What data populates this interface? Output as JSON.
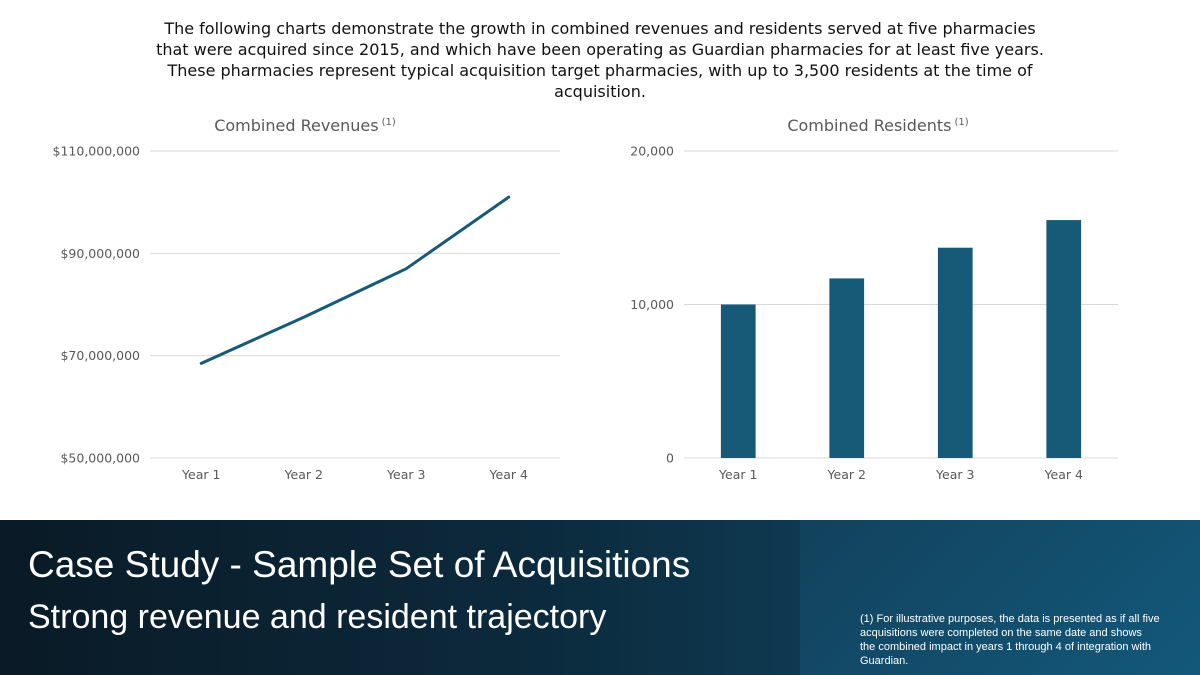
{
  "intro_text": "The following charts demonstrate the growth in combined revenues and residents served at five pharmacies that were acquired since 2015, and which have been operating as Guardian pharmacies for at least five years. These pharmacies represent typical acquisition target pharmacies, with up to 3,500 residents at the time of acquisition.",
  "chart_data": [
    {
      "type": "line",
      "title": "Combined Revenues",
      "title_superscript": "(1)",
      "categories": [
        "Year 1",
        "Year 2",
        "Year 3",
        "Year 4"
      ],
      "values": [
        68500000,
        77500000,
        87000000,
        101000000
      ],
      "ylim": [
        50000000,
        110000000
      ],
      "y_ticks": [
        50000000,
        70000000,
        90000000,
        110000000
      ],
      "y_tick_labels": [
        "$50,000,000",
        "$70,000,000",
        "$90,000,000",
        "$110,000,000"
      ],
      "grid": true,
      "color": "#165a78"
    },
    {
      "type": "bar",
      "title": "Combined Residents",
      "title_superscript": "(1)",
      "categories": [
        "Year 1",
        "Year 2",
        "Year 3",
        "Year 4"
      ],
      "values": [
        10000,
        11700,
        13700,
        15500
      ],
      "ylim": [
        0,
        20000
      ],
      "y_ticks": [
        0,
        10000,
        20000
      ],
      "y_tick_labels": [
        "0",
        "10,000",
        "20,000"
      ],
      "grid": true,
      "color": "#165a78"
    }
  ],
  "footer": {
    "title": "Case Study - Sample Set of Acquisitions",
    "subtitle": "Strong revenue and resident trajectory",
    "footnote": "(1) For illustrative purposes, the data is presented as if all five acquisitions were completed on the same date and shows the combined impact in years 1 through 4 of integration with Guardian."
  }
}
